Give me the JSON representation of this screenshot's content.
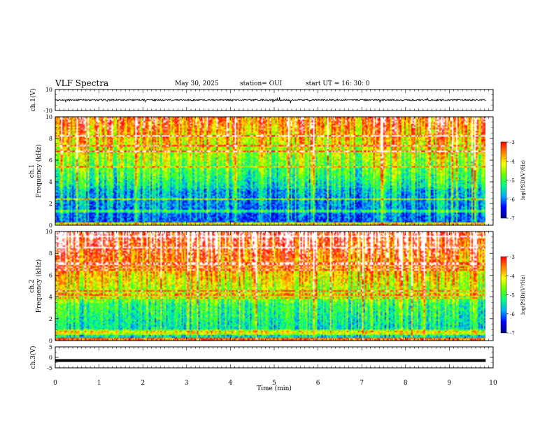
{
  "header": {
    "title": "VLF Spectra",
    "date": "May 30, 2025",
    "station": "station= OUI",
    "start": "start  UT  =   16: 30: 0"
  },
  "chart_data": [
    {
      "type": "line",
      "panel": "ch1-waveform",
      "ylabel": "ch.1(V)",
      "ylim": [
        -10,
        10
      ],
      "yticks": [
        "10",
        "-10"
      ],
      "xlim": [
        0,
        10
      ],
      "x_extent": [
        0,
        9.83
      ],
      "baseline": 0,
      "color": "#000000"
    },
    {
      "type": "heatmap",
      "panel": "ch1-spectrogram",
      "ylabel_line1": "ch.1",
      "ylabel_line2": "Frequency (kHz)",
      "ylim": [
        0,
        10
      ],
      "yticks": [
        "0",
        "2",
        "4",
        "6",
        "8",
        "10"
      ],
      "xlim": [
        0,
        10
      ],
      "colorbar": {
        "label": "log(PSD)(V²/Hz)",
        "range": [
          -7,
          -3
        ],
        "ticks": [
          "-3",
          "-4",
          "-5",
          "-6",
          "-7"
        ],
        "colors": [
          "#000080",
          "#0000ff",
          "#00aaff",
          "#00ff88",
          "#66ff00",
          "#ffff00",
          "#ff8800",
          "#ff0000",
          "#ffffff"
        ]
      }
    },
    {
      "type": "heatmap",
      "panel": "ch2-spectrogram",
      "ylabel_line1": "ch.2",
      "ylabel_line2": "Frequency (kHz)",
      "ylim": [
        0,
        10
      ],
      "yticks": [
        "0",
        "2",
        "4",
        "6",
        "8",
        "10"
      ],
      "xlim": [
        0,
        10
      ],
      "colorbar": {
        "label": "log(PSD)(V²/Hz)",
        "range": [
          -7,
          -3
        ],
        "ticks": [
          "-3",
          "-4",
          "-5",
          "-6",
          "-7"
        ],
        "colors": [
          "#000080",
          "#0000ff",
          "#00aaff",
          "#00ff88",
          "#66ff00",
          "#ffff00",
          "#ff8800",
          "#ff0000",
          "#ffffff"
        ]
      }
    },
    {
      "type": "line",
      "panel": "ch3-waveform",
      "ylabel": "ch.3(V)",
      "ylim": [
        -5,
        5
      ],
      "yticks": [
        "5",
        "0",
        "-5"
      ],
      "xlim": [
        0,
        10
      ],
      "x_extent": [
        0,
        9.83
      ],
      "values_constant": -1.5,
      "color": "#000000",
      "xlabel": "Time (min)",
      "xticks": [
        "0",
        "1",
        "2",
        "3",
        "4",
        "5",
        "6",
        "7",
        "8",
        "9",
        "10"
      ]
    }
  ]
}
